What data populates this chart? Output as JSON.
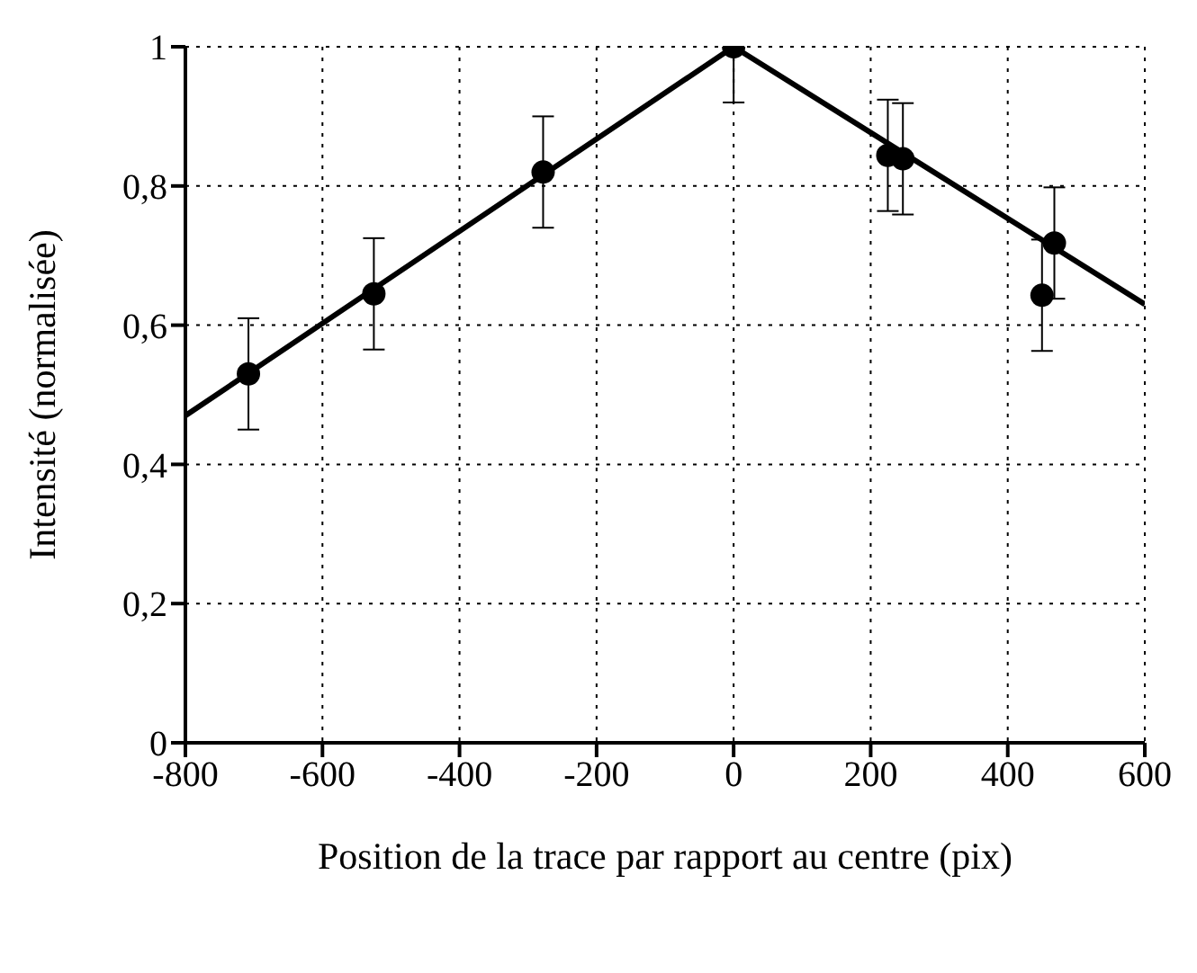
{
  "chart_data": {
    "type": "scatter",
    "xlabel": "Position de la trace par rapport au centre (pix)",
    "ylabel": "Intensité (normalisée)",
    "xlim": [
      -800,
      600
    ],
    "xticks": [
      -800,
      -600,
      -400,
      -200,
      0,
      200,
      400,
      600
    ],
    "ylim": [
      0,
      1
    ],
    "yticks": [
      0,
      {
        "value": 0.2,
        "label": "0,2"
      },
      {
        "value": 0.4,
        "label": "0,4"
      },
      {
        "value": 0.6,
        "label": "0,6"
      },
      {
        "value": 0.8,
        "label": "0,8"
      },
      1
    ],
    "grid": true,
    "legend": false,
    "series": [
      {
        "color": "#000000",
        "marker": "circle",
        "x": [
          -708,
          -525,
          -278,
          0,
          225,
          247,
          450,
          468
        ],
        "values": [
          0.53,
          0.645,
          0.82,
          1.0,
          0.844,
          0.839,
          0.643,
          0.718
        ],
        "errors": [
          0.08,
          0.08,
          0.08,
          [
            0.92,
            1.0
          ],
          0.08,
          0.08,
          0.08,
          0.08
        ]
      },
      {
        "type": "line",
        "color": "#000000",
        "marker": "none",
        "x": [
          -800,
          0,
          600
        ],
        "values": [
          0.47,
          1.0,
          0.63
        ]
      }
    ]
  }
}
